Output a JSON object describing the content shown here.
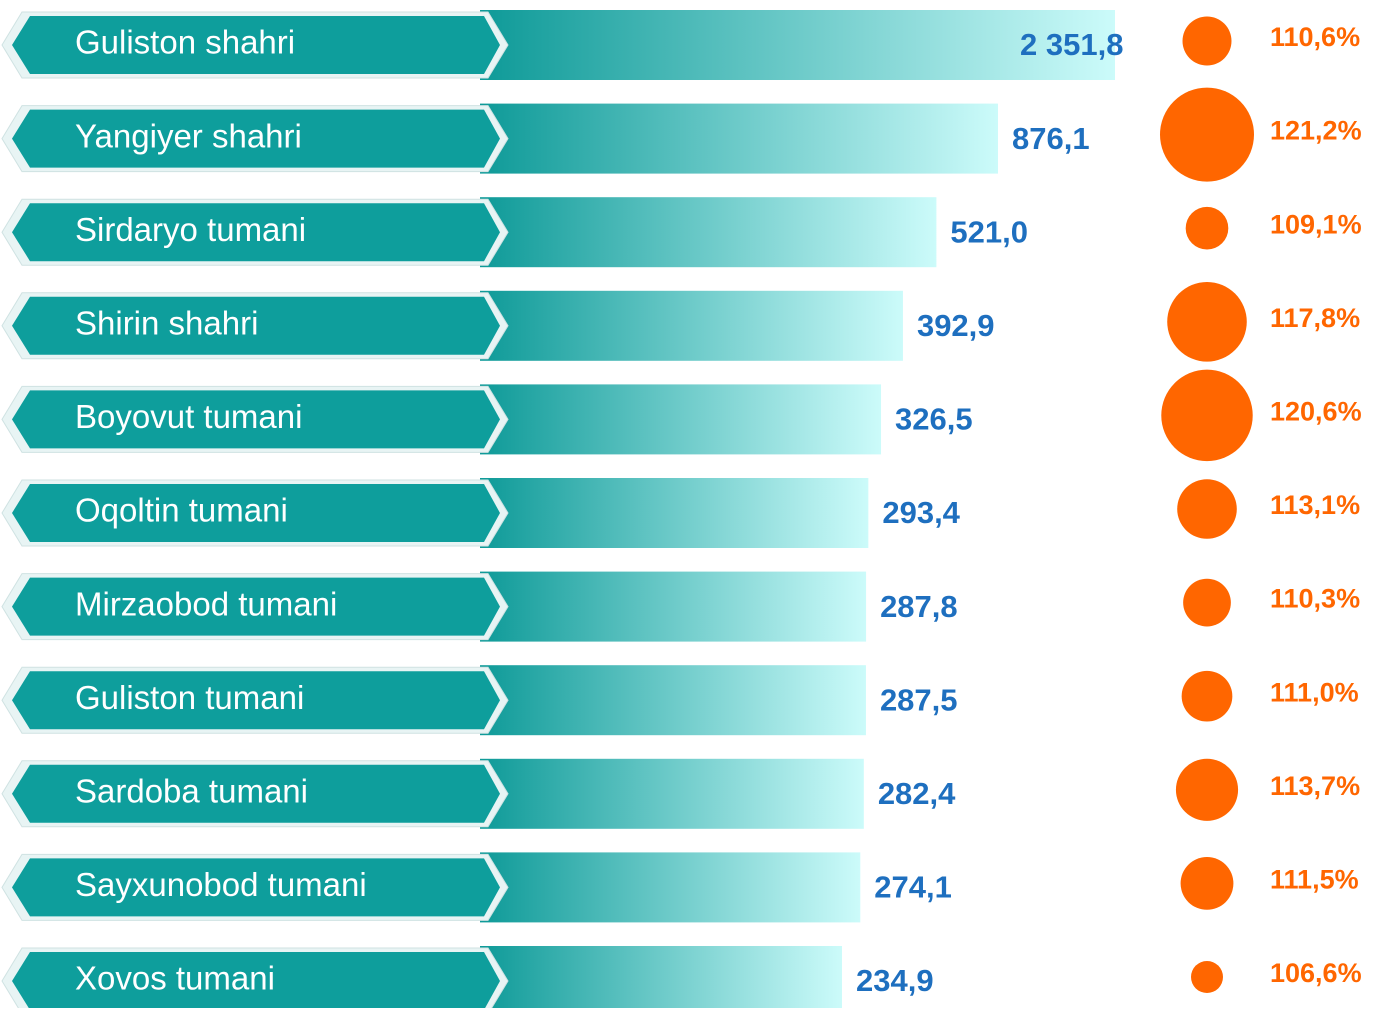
{
  "chart_data": {
    "type": "bar",
    "categories": [
      "Guliston shahri",
      "Yangiyer shahri",
      "Sirdaryo tumani",
      "Shirin shahri",
      "Boyovut tumani",
      "Oqoltin tumani",
      "Mirzaobod tumani",
      "Guliston tumani",
      "Sardoba tumani",
      "Sayxunobod tumani",
      "Xovos tumani"
    ],
    "values": [
      2351.8,
      876.1,
      521.0,
      392.9,
      326.5,
      293.4,
      287.8,
      287.5,
      282.4,
      274.1,
      234.9
    ],
    "value_labels": [
      "2 351,8",
      "876,1",
      "521,0",
      "392,9",
      "326,5",
      "293,4",
      "287,8",
      "287,5",
      "282,4",
      "274,1",
      "234,9"
    ],
    "bubble_values": [
      110.6,
      121.2,
      109.1,
      117.8,
      120.6,
      113.1,
      110.3,
      111.0,
      113.7,
      111.5,
      106.6
    ],
    "bubble_labels": [
      "110,6%",
      "121,2%",
      "109,1%",
      "117,8%",
      "120,6%",
      "113,1%",
      "110,3%",
      "111,0%",
      "113,7%",
      "111,5%",
      "106,6%"
    ],
    "color": "#0e9e9c",
    "bubble_color": "#ff6600"
  }
}
